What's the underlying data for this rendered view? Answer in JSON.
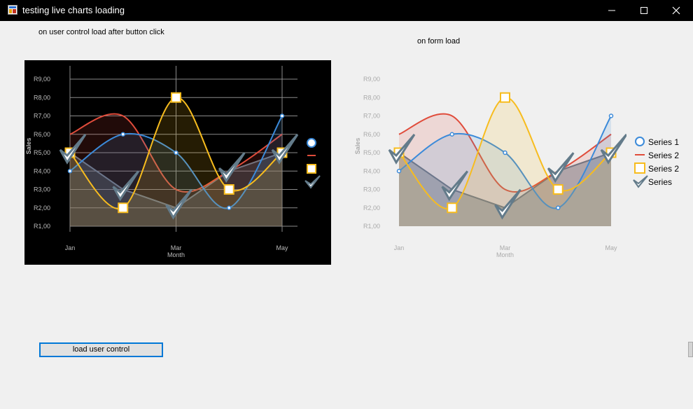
{
  "window": {
    "title": "testing live charts loading",
    "icon": "app-window-icon",
    "controls": [
      "minimize-icon",
      "maximize-icon",
      "close-icon"
    ]
  },
  "labels": {
    "user_control": "on user control load after button click",
    "form_load": "on form load"
  },
  "button": {
    "load_label": "load user control"
  },
  "colors": {
    "series1": "#3b8ad9",
    "series2": "#e04c3b",
    "series3": "#f7bc1e",
    "series4": "#637b8a",
    "dark_bg": "#000000"
  },
  "chart_data": [
    {
      "type": "line",
      "theme": "dark",
      "xlabel": "Month",
      "ylabel": "Sales",
      "x_ticks": [
        "Jan",
        "Mar",
        "May"
      ],
      "y_ticks": [
        "R1,00",
        "R2,00",
        "R3,00",
        "R4,00",
        "R5,00",
        "R6,00",
        "R7,00",
        "R8,00",
        "R9,00"
      ],
      "ylim": [
        1,
        9
      ],
      "grid": true,
      "legend_position": "right",
      "series": [
        {
          "name": "",
          "marker": "circle",
          "values": [
            4,
            6,
            5,
            2,
            7
          ]
        },
        {
          "name": "",
          "marker": "none",
          "values": [
            6,
            7,
            3,
            4,
            6
          ]
        },
        {
          "name": "",
          "marker": "square",
          "values": [
            5,
            2,
            8,
            3,
            5
          ]
        },
        {
          "name": "",
          "marker": "check",
          "values": [
            5,
            3,
            2,
            4,
            5
          ]
        }
      ]
    },
    {
      "type": "line",
      "theme": "light",
      "xlabel": "Month",
      "ylabel": "Sales",
      "x_ticks": [
        "Jan",
        "Mar",
        "May"
      ],
      "y_ticks": [
        "R1,00",
        "R2,00",
        "R3,00",
        "R4,00",
        "R5,00",
        "R6,00",
        "R7,00",
        "R8,00",
        "R9,00"
      ],
      "ylim": [
        1,
        9
      ],
      "grid": false,
      "legend_position": "right",
      "series": [
        {
          "name": "Series 1",
          "marker": "circle",
          "values": [
            4,
            6,
            5,
            2,
            7
          ]
        },
        {
          "name": "Series 2",
          "marker": "none",
          "values": [
            6,
            7,
            3,
            4,
            6
          ]
        },
        {
          "name": "Series 2",
          "marker": "square",
          "values": [
            5,
            2,
            8,
            3,
            5
          ]
        },
        {
          "name": "Series",
          "marker": "check",
          "values": [
            5,
            3,
            2,
            4,
            5
          ]
        }
      ]
    }
  ]
}
